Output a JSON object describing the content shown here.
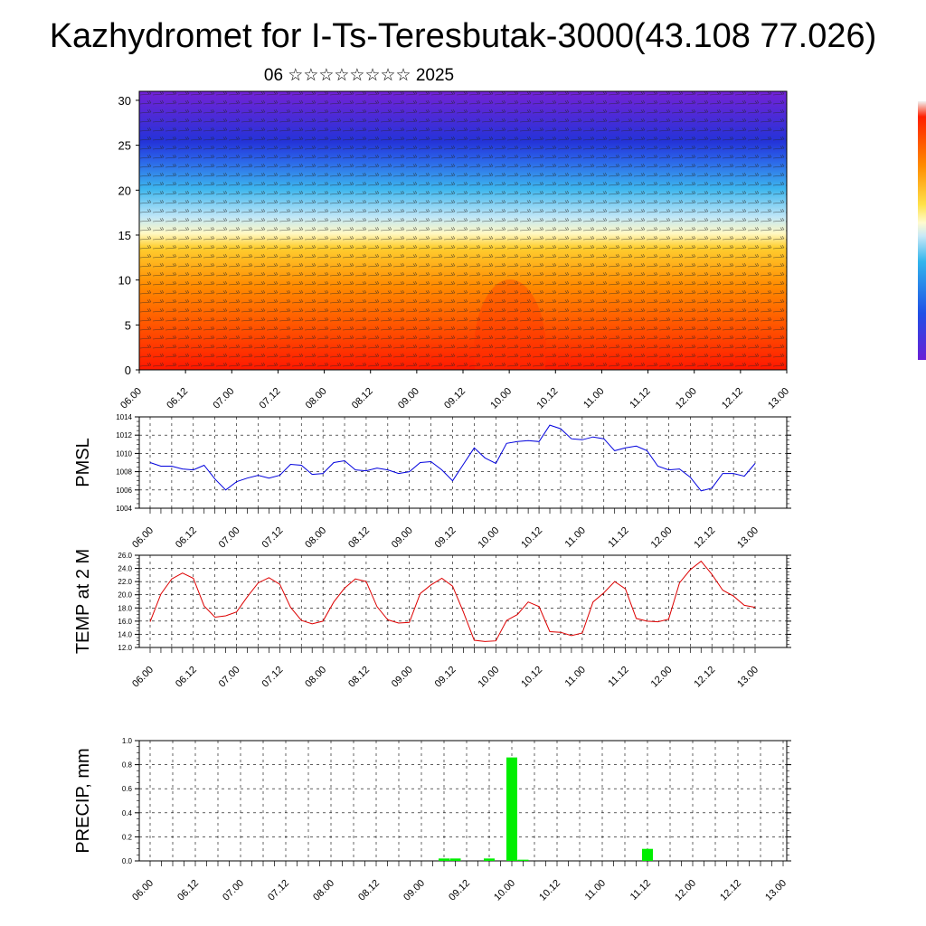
{
  "title": "Kazhydromet for I-Ts-Teresbutak-3000(43.108 77.026)",
  "subtitle": "06 ☆☆☆☆☆☆☆☆ 2025",
  "colorbar": {
    "colors": [
      "#ff2000",
      "#ff8c00",
      "#ffe24a",
      "#fffbd0",
      "#c8e9f7",
      "#32b5ec",
      "#2050e6",
      "#6a1fd6"
    ]
  },
  "chart_data": [
    {
      "type": "heatmap",
      "description_axis": "levels",
      "x_ticks": [
        "06.00",
        "06.12",
        "07.00",
        "07.12",
        "08.00",
        "08.12",
        "09.00",
        "09.12",
        "10.00",
        "10.12",
        "11.00",
        "11.12",
        "12.00",
        "12.12",
        "13.00"
      ],
      "y_ticks": [
        "0",
        "5",
        "10",
        "15",
        "20",
        "25",
        "30"
      ],
      "ylim": [
        0,
        31
      ],
      "wind_barbs": true,
      "legend": "colorbar right"
    },
    {
      "type": "line",
      "ylabel": "PMSL",
      "ylim": [
        1004,
        1014
      ],
      "y_ticks": [
        "1004",
        "1006",
        "1008",
        "1010",
        "1012",
        "1014"
      ],
      "x_ticks": [
        "06.00",
        "06.12",
        "07.00",
        "07.12",
        "08.00",
        "08.12",
        "09.00",
        "09.12",
        "10.00",
        "10.12",
        "11.00",
        "11.12",
        "12.00",
        "12.12",
        "13.00"
      ],
      "color": "#0000dd",
      "grid": true,
      "values": [
        1009.0,
        1008.6,
        1008.6,
        1008.3,
        1008.2,
        1008.7,
        1007.2,
        1006.0,
        1006.9,
        1007.3,
        1007.6,
        1007.3,
        1007.6,
        1008.8,
        1008.7,
        1007.7,
        1007.8,
        1009.0,
        1009.2,
        1008.2,
        1008.1,
        1008.4,
        1008.2,
        1007.8,
        1008.0,
        1009.0,
        1009.1,
        1008.2,
        1007.0,
        1008.8,
        1010.6,
        1009.5,
        1008.9,
        1011.1,
        1011.3,
        1011.4,
        1011.3,
        1013.1,
        1012.7,
        1011.6,
        1011.5,
        1011.8,
        1011.6,
        1010.3,
        1010.6,
        1010.8,
        1010.3,
        1008.6,
        1008.2,
        1008.3,
        1007.4,
        1005.9,
        1006.2,
        1007.8,
        1007.8,
        1007.5,
        1008.9
      ]
    },
    {
      "type": "line",
      "ylabel": "TEMP at 2 M",
      "ylim": [
        12.0,
        26.0
      ],
      "y_ticks": [
        "12.0",
        "14.0",
        "16.0",
        "18.0",
        "20.0",
        "22.0",
        "24.0",
        "26.0"
      ],
      "x_ticks": [
        "06.00",
        "06.12",
        "07.00",
        "07.12",
        "08.00",
        "08.12",
        "09.00",
        "09.12",
        "10.00",
        "10.12",
        "11.00",
        "11.12",
        "12.00",
        "12.12",
        "13.00"
      ],
      "color": "#dd0000",
      "grid": true,
      "values": [
        15.9,
        20.1,
        22.4,
        23.3,
        22.5,
        18.3,
        16.6,
        16.8,
        17.4,
        19.7,
        21.8,
        22.6,
        21.6,
        18.1,
        16.1,
        15.6,
        16.0,
        18.9,
        21.0,
        22.4,
        22.0,
        18.2,
        16.2,
        15.7,
        15.8,
        20.2,
        21.5,
        22.5,
        21.3,
        17.4,
        13.1,
        12.9,
        13.0,
        16.1,
        17.0,
        18.9,
        18.2,
        14.4,
        14.3,
        13.8,
        14.2,
        18.9,
        20.3,
        22.0,
        20.9,
        16.4,
        16.0,
        15.9,
        16.3,
        21.8,
        23.8,
        25.1,
        23.1,
        20.7,
        19.8,
        18.4,
        18.1
      ]
    },
    {
      "type": "bar",
      "ylabel": "PRECIP, mm",
      "ylim": [
        0.0,
        1.0
      ],
      "y_ticks": [
        "0.0",
        "0.2",
        "0.4",
        "0.6",
        "0.8",
        "1.0"
      ],
      "x_ticks": [
        "06.00",
        "06.12",
        "07.00",
        "07.12",
        "08.00",
        "08.12",
        "09.00",
        "09.12",
        "10.00",
        "10.12",
        "11.00",
        "11.12",
        "12.00",
        "12.12",
        "13.00"
      ],
      "color": "#00ee00",
      "grid": true,
      "values": [
        0,
        0,
        0,
        0,
        0,
        0,
        0,
        0,
        0,
        0,
        0,
        0,
        0,
        0,
        0,
        0,
        0,
        0,
        0,
        0,
        0,
        0,
        0,
        0,
        0,
        0,
        0.02,
        0.02,
        0,
        0,
        0.02,
        0,
        0.86,
        0.01,
        0,
        0,
        0,
        0,
        0,
        0,
        0,
        0,
        0,
        0,
        0.1,
        0,
        0,
        0,
        0,
        0,
        0,
        0,
        0,
        0,
        0,
        0,
        0
      ]
    }
  ]
}
